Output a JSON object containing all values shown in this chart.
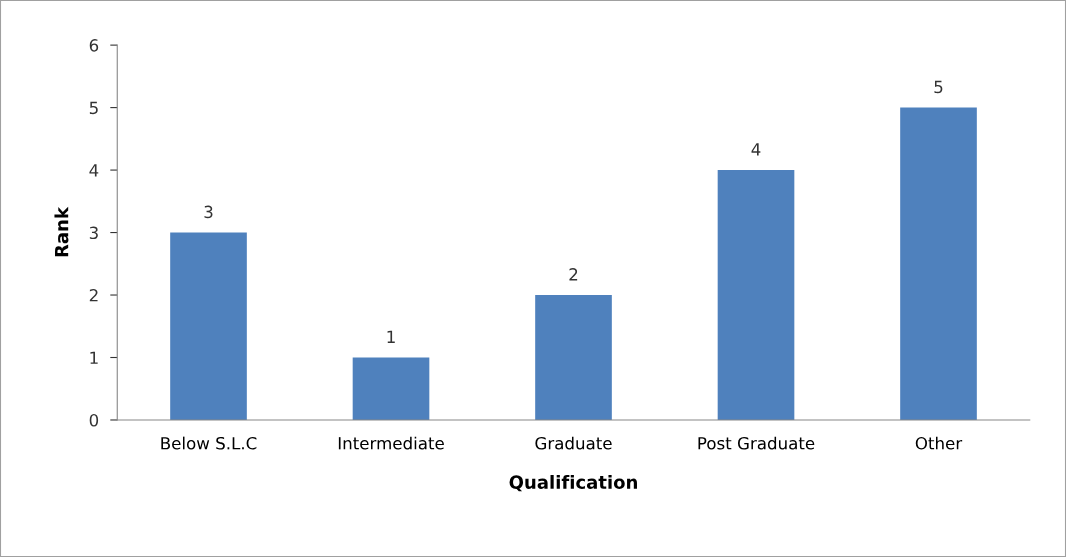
{
  "chart_data": {
    "type": "bar",
    "xlabel": "Qualification",
    "ylabel": "Rank",
    "categories": [
      "Below S.L.C",
      "Intermediate",
      "Graduate",
      "Post Graduate",
      "Other"
    ],
    "values": [
      3,
      1,
      2,
      4,
      5
    ],
    "color": "#4f81bd",
    "ylim": [
      0,
      6
    ],
    "yticks": [
      0,
      1,
      2,
      3,
      4,
      5,
      6
    ],
    "grid": false,
    "data_labels": true
  }
}
